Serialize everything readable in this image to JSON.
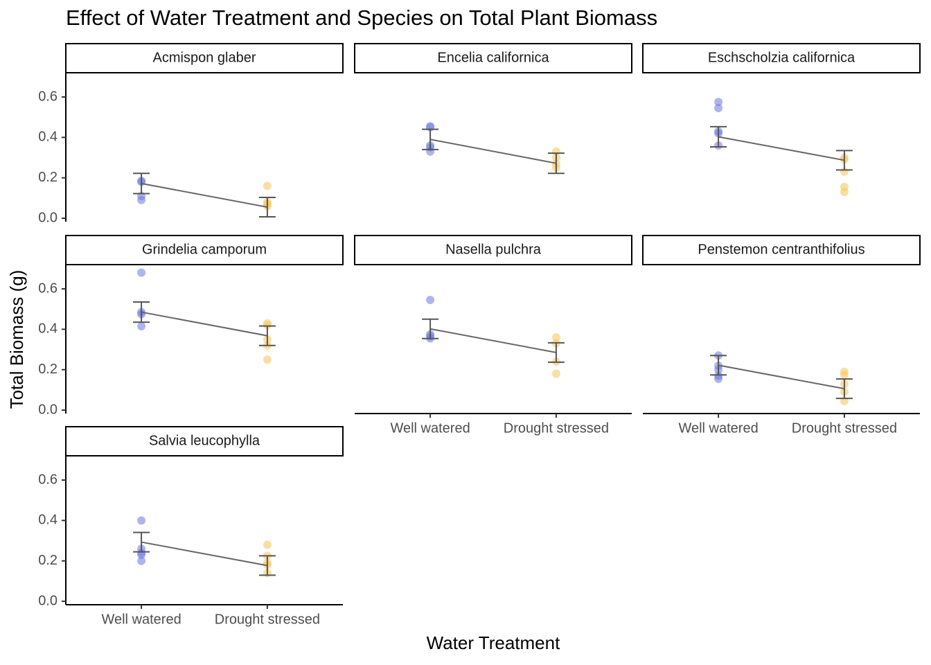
{
  "title": "Effect of Water Treatment and Species on Total Plant Biomass",
  "x_label": "Water Treatment",
  "y_label": "Total Biomass (g)",
  "categories": [
    "Well watered",
    "Drought stressed"
  ],
  "colors": [
    "#6b78e0",
    "#f5c55a"
  ],
  "ylim": [
    -0.017,
    0.72
  ],
  "yticks": [
    {
      "value": 0,
      "label": "0.0"
    },
    {
      "value": 0.2,
      "label": "0.2"
    },
    {
      "value": 0.4,
      "label": "0.4"
    },
    {
      "value": 0.6,
      "label": "0.6"
    }
  ],
  "chart_data": [
    {
      "type": "errorbar",
      "title": "Acmispon glaber",
      "points": [
        [
          0.185,
          0.18,
          0.11,
          0.09
        ],
        [
          0.16,
          0.08,
          0.07,
          0.06
        ]
      ],
      "means": [
        0.172,
        0.055
      ],
      "se": [
        0.05,
        0.048
      ]
    },
    {
      "type": "errorbar",
      "title": "Encelia californica",
      "points": [
        [
          0.455,
          0.45,
          0.36,
          0.35,
          0.33
        ],
        [
          0.33,
          0.3,
          0.27,
          0.25
        ]
      ],
      "means": [
        0.39,
        0.272
      ],
      "se": [
        0.05,
        0.05
      ]
    },
    {
      "type": "errorbar",
      "title": "Eschscholzia californica",
      "points": [
        [
          0.575,
          0.545,
          0.43,
          0.42,
          0.36
        ],
        [
          0.3,
          0.29,
          0.23,
          0.155,
          0.13
        ]
      ],
      "means": [
        0.403,
        0.287
      ],
      "se": [
        0.05,
        0.048
      ]
    },
    {
      "type": "errorbar",
      "title": "Grindelia camporum",
      "points": [
        [
          0.68,
          0.485,
          0.475,
          0.415
        ],
        [
          0.43,
          0.42,
          0.35,
          0.32,
          0.25
        ]
      ],
      "means": [
        0.485,
        0.368
      ],
      "se": [
        0.05,
        0.048
      ]
    },
    {
      "type": "errorbar",
      "title": "Nasella pulchra",
      "points": [
        [
          0.545,
          0.375,
          0.365,
          0.355
        ],
        [
          0.36,
          0.33,
          0.24,
          0.18
        ]
      ],
      "means": [
        0.402,
        0.285
      ],
      "se": [
        0.048,
        0.048
      ]
    },
    {
      "type": "errorbar",
      "title": "Penstemon centranthifolius",
      "points": [
        [
          0.27,
          0.22,
          0.2,
          0.17,
          0.155
        ],
        [
          0.19,
          0.175,
          0.13,
          0.09,
          0.045
        ]
      ],
      "means": [
        0.222,
        0.106
      ],
      "se": [
        0.048,
        0.048
      ]
    },
    {
      "type": "errorbar",
      "title": "Salvia leucophylla",
      "points": [
        [
          0.4,
          0.26,
          0.24,
          0.23,
          0.2
        ],
        [
          0.28,
          0.225,
          0.19,
          0.18,
          0.14
        ]
      ],
      "means": [
        0.293,
        0.177
      ],
      "se": [
        0.048,
        0.048
      ]
    }
  ]
}
